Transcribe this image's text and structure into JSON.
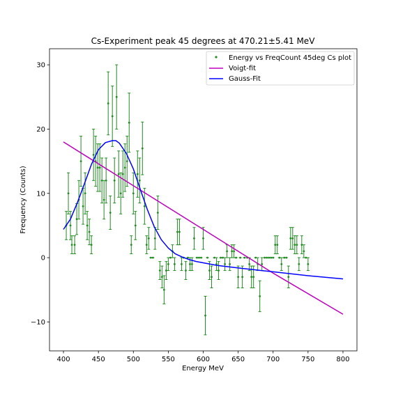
{
  "chart_data": {
    "type": "scatter",
    "title": "Cs-Experiment peak 45 degrees at 470.21±5.41 MeV",
    "xlabel": "Energy MeV",
    "ylabel": "Frequency (Counts)",
    "xlim": [
      380,
      820
    ],
    "ylim": [
      -14.5,
      32.5
    ],
    "x_ticks": [
      400,
      450,
      500,
      550,
      600,
      650,
      700,
      750,
      800
    ],
    "y_ticks": [
      -10,
      0,
      10,
      20,
      30
    ],
    "grid": false,
    "legend_position": "top-right",
    "legend": [
      "Energy vs FreqCount 45deg Cs plot",
      "Voigt-fit",
      "Gauss-Fit"
    ],
    "colors": {
      "data": "#228B22",
      "voigt": "#bf00bf",
      "gauss": "#0000ff"
    },
    "series": [
      {
        "name": "Energy vs FreqCount 45deg Cs plot",
        "type": "errorbar",
        "x": [
          404,
          407,
          410,
          412,
          416,
          419,
          422,
          425,
          428,
          431,
          434,
          437,
          440,
          443,
          446,
          449,
          452,
          455,
          458,
          461,
          464,
          467,
          470,
          473,
          476,
          479,
          482,
          485,
          488,
          491,
          494,
          497,
          500,
          503,
          506,
          509,
          513,
          516,
          519,
          522,
          525,
          528,
          531,
          535,
          538,
          541,
          544,
          547,
          550,
          553,
          556,
          559,
          563,
          566,
          569,
          572,
          575,
          578,
          581,
          584,
          587,
          591,
          594,
          597,
          600,
          603,
          606,
          609,
          612,
          616,
          619,
          622,
          625,
          628,
          631,
          634,
          638,
          641,
          644,
          647,
          650,
          653,
          656,
          659,
          663,
          666,
          669,
          672,
          675,
          678,
          681,
          684,
          688,
          691,
          694,
          697,
          700,
          703,
          706,
          709,
          712,
          716,
          719,
          722,
          725,
          728,
          731,
          734,
          737,
          741,
          744,
          747,
          750
        ],
        "y": [
          5,
          10,
          5,
          2,
          2,
          6,
          9,
          15,
          8,
          10,
          5,
          4,
          2,
          16,
          15,
          14,
          14,
          12,
          9,
          12,
          24,
          7,
          22,
          12,
          25,
          13,
          10,
          13,
          14,
          15,
          21,
          2,
          10,
          5,
          13,
          12,
          17,
          8,
          2,
          3,
          0,
          0,
          3,
          7,
          -2,
          -3,
          -5,
          -2,
          -1,
          0,
          1,
          -1,
          4,
          4,
          -1,
          0,
          -2,
          0,
          -1,
          -1,
          3,
          0,
          0,
          0,
          3,
          -9,
          0,
          -2,
          -3,
          0,
          -1,
          -2,
          0,
          0,
          -1,
          1,
          -1,
          1,
          1,
          0,
          -3,
          0,
          -3,
          0,
          0,
          -1,
          -3,
          -3,
          0,
          -1,
          -6,
          -1,
          0,
          0,
          0,
          0,
          0,
          2,
          2,
          0,
          -1,
          0,
          0,
          -3,
          3,
          3,
          2,
          2,
          -1,
          2,
          1,
          0,
          -1
        ],
        "err": [
          2.2,
          3.2,
          2.2,
          1.4,
          1.4,
          2.4,
          3,
          3.9,
          2.8,
          3.2,
          2.2,
          2,
          1.4,
          4,
          3.9,
          3.7,
          3.7,
          3.5,
          3,
          3.5,
          4.9,
          2.6,
          4.7,
          3.5,
          5,
          3.6,
          3.2,
          3.6,
          3.7,
          3.9,
          4.6,
          1.4,
          3.2,
          2.2,
          3.6,
          3.5,
          4.1,
          2.8,
          1.4,
          1.7,
          0,
          0,
          1.7,
          2.6,
          1.4,
          1.7,
          2.2,
          1.4,
          1,
          0,
          1,
          1,
          2,
          2,
          1,
          0,
          1.4,
          0,
          1,
          1,
          1.7,
          0,
          0,
          0,
          1.7,
          3,
          0,
          1.4,
          1.7,
          0,
          1,
          1.4,
          0,
          0,
          1,
          1,
          1,
          1,
          1,
          0,
          1.7,
          0,
          1.7,
          0,
          0,
          1,
          1.7,
          1.7,
          0,
          1,
          2.4,
          1,
          0,
          0,
          0,
          0,
          0,
          1.4,
          1.4,
          0,
          1,
          0,
          0,
          1.7,
          1.7,
          1.7,
          1.4,
          1.4,
          1,
          1.4,
          1,
          0,
          1
        ]
      },
      {
        "name": "Voigt-fit",
        "type": "line",
        "x": [
          400,
          500,
          600,
          700,
          800
        ],
        "y": [
          18,
          11.2,
          4.4,
          -2.4,
          -8.8
        ]
      },
      {
        "name": "Gauss-Fit",
        "type": "line",
        "x": [
          400,
          410,
          420,
          430,
          440,
          450,
          460,
          470,
          475,
          480,
          490,
          500,
          510,
          520,
          530,
          540,
          550,
          560,
          570,
          580,
          590,
          600,
          620,
          650,
          700,
          750,
          800
        ],
        "y": [
          4.4,
          6,
          8.6,
          11.5,
          14.5,
          16.8,
          17.9,
          18.2,
          18.2,
          17.8,
          16.2,
          13.8,
          10.6,
          7.5,
          4.8,
          2.8,
          1.5,
          0.6,
          0.1,
          -0.3,
          -0.6,
          -0.8,
          -1.2,
          -1.6,
          -2.2,
          -2.8,
          -3.3
        ]
      }
    ]
  }
}
